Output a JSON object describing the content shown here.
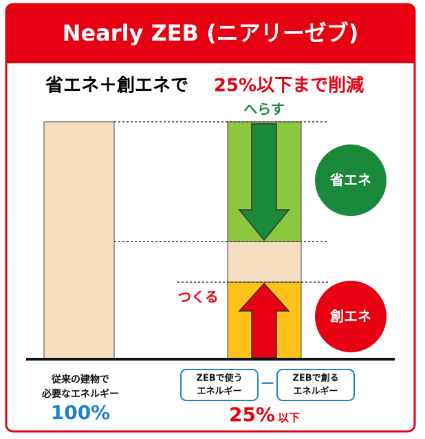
{
  "header": {
    "title": "Nearly ZEB (ニアリーゼブ)"
  },
  "subtitle": {
    "prefix": "省エネ＋創エネで",
    "highlight": "25%以下まで削減"
  },
  "labels": {
    "reduce": "へらす",
    "create": "つくる",
    "saving_circle": "省エネ",
    "creating_circle": "創エネ"
  },
  "left": {
    "line1": "従来の建物で",
    "line2": "必要なエネルギー",
    "percent": "100%"
  },
  "formula": {
    "used_line1": "ZEBで使う",
    "used_line2": "エネルギー",
    "minus": "－",
    "created_line1": "ZEBで創る",
    "created_line2": "エネルギー"
  },
  "result": {
    "percent": "25%",
    "suffix": "以下"
  }
}
